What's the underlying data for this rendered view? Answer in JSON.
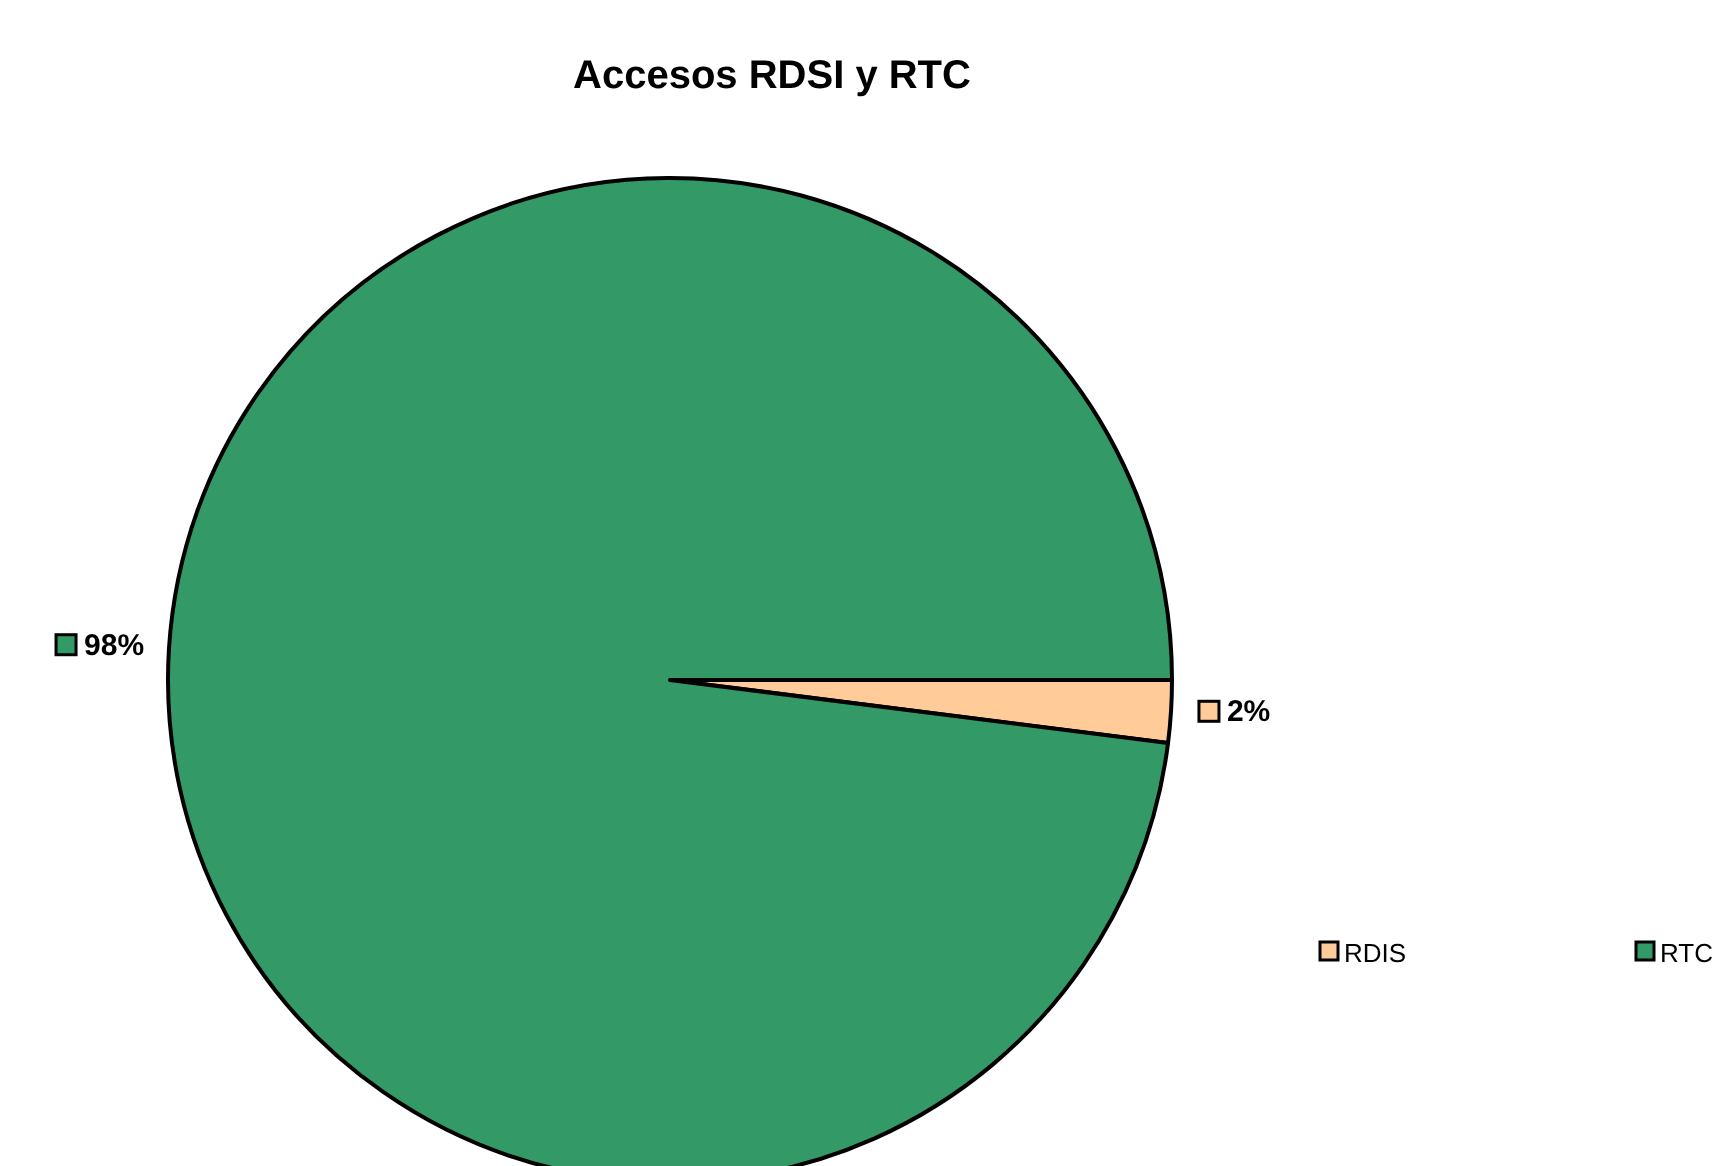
{
  "chart_data": {
    "type": "pie",
    "title": "Accesos RDSI y RTC",
    "categories": [
      "RDIS",
      "RTC"
    ],
    "values": [
      2,
      98
    ],
    "colors": [
      "#ffcc99",
      "#339966"
    ],
    "value_labels": [
      "2%",
      "98%"
    ],
    "legend": "right"
  }
}
